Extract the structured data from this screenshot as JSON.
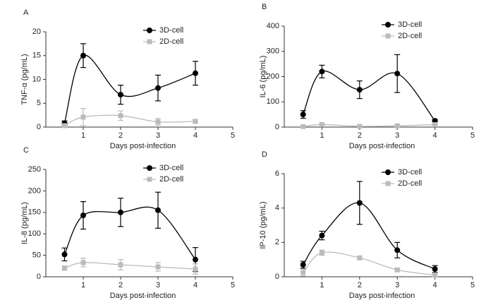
{
  "chart_data": [
    {
      "type": "line",
      "label": "A",
      "ylabel": "TNF-α (pg/mL)",
      "xlabel": "Days post-infection",
      "x": [
        0.5,
        1,
        2,
        3,
        4
      ],
      "xlim": [
        0,
        5
      ],
      "xticks": [
        1,
        2,
        3,
        4,
        5
      ],
      "ylim": [
        0,
        20
      ],
      "yticks": [
        0,
        5,
        10,
        15,
        20
      ],
      "series": [
        {
          "name": "3D-cell",
          "color": "#000000",
          "marker": "circle",
          "values": [
            0.8,
            15,
            6.8,
            8.2,
            11.3
          ],
          "errors": [
            0.5,
            2.5,
            2,
            2.7,
            2.5
          ]
        },
        {
          "name": "2D-cell",
          "color": "#bbbbbb",
          "marker": "square",
          "values": [
            0.3,
            2.1,
            2.4,
            1.1,
            1.2
          ],
          "errors": [
            0.3,
            1.8,
            1,
            0.7,
            0.3
          ]
        }
      ]
    },
    {
      "type": "line",
      "label": "B",
      "ylabel": "IL-6 (pg/mL)",
      "xlabel": "Days post-infection",
      "x": [
        0.5,
        1,
        2,
        3,
        4
      ],
      "xlim": [
        0,
        5
      ],
      "xticks": [
        1,
        2,
        3,
        4,
        5
      ],
      "ylim": [
        0,
        400
      ],
      "yticks": [
        0,
        100,
        200,
        300,
        400
      ],
      "series": [
        {
          "name": "3D-cell",
          "color": "#000000",
          "marker": "circle",
          "values": [
            50,
            220,
            148,
            212,
            25
          ],
          "errors": [
            15,
            25,
            35,
            75,
            5
          ]
        },
        {
          "name": "2D-cell",
          "color": "#bbbbbb",
          "marker": "square",
          "values": [
            2,
            10,
            3,
            5,
            10
          ],
          "errors": [
            3,
            5,
            3,
            5,
            3
          ]
        }
      ]
    },
    {
      "type": "line",
      "label": "C",
      "ylabel": "IL-8 (pg/mL)",
      "xlabel": "Days post-infection",
      "x": [
        0.5,
        1,
        2,
        3,
        4
      ],
      "xlim": [
        0,
        5
      ],
      "xticks": [
        1,
        2,
        3,
        4,
        5
      ],
      "ylim": [
        0,
        250
      ],
      "yticks": [
        0,
        50,
        100,
        150,
        200,
        250
      ],
      "series": [
        {
          "name": "3D-cell",
          "color": "#000000",
          "marker": "circle",
          "values": [
            52,
            143,
            150,
            155,
            40
          ],
          "errors": [
            15,
            32,
            33,
            42,
            28
          ]
        },
        {
          "name": "2D-cell",
          "color": "#bbbbbb",
          "marker": "square",
          "values": [
            20,
            33,
            28,
            23,
            18
          ],
          "errors": [
            5,
            10,
            12,
            10,
            12
          ]
        }
      ]
    },
    {
      "type": "line",
      "label": "D",
      "ylabel": "IP-10 (pg/mL)",
      "xlabel": "Days post-infection",
      "x": [
        0.5,
        1,
        2,
        3,
        4
      ],
      "xlim": [
        0,
        5
      ],
      "xticks": [
        1,
        2,
        3,
        4,
        5
      ],
      "ylim": [
        0,
        6
      ],
      "yticks": [
        0,
        2,
        4,
        6
      ],
      "series": [
        {
          "name": "3D-cell",
          "color": "#000000",
          "marker": "circle",
          "values": [
            0.7,
            2.4,
            4.3,
            1.55,
            0.45
          ],
          "errors": [
            0.2,
            0.25,
            1.25,
            0.45,
            0.2
          ]
        },
        {
          "name": "2D-cell",
          "color": "#bbbbbb",
          "marker": "square",
          "values": [
            0.25,
            1.4,
            1.1,
            0.4,
            0.1
          ],
          "errors": [
            0.2,
            0.15,
            0.1,
            0.1,
            0.1
          ]
        }
      ]
    }
  ]
}
